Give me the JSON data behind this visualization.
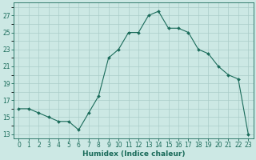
{
  "x": [
    0,
    1,
    2,
    3,
    4,
    5,
    6,
    7,
    8,
    9,
    10,
    11,
    12,
    13,
    14,
    15,
    16,
    17,
    18,
    19,
    20,
    21,
    22,
    23
  ],
  "y": [
    16.0,
    16.0,
    15.5,
    15.0,
    14.5,
    14.5,
    13.5,
    15.5,
    17.5,
    22.0,
    23.0,
    25.0,
    25.0,
    27.0,
    27.5,
    25.5,
    25.5,
    25.0,
    23.0,
    22.5,
    21.0,
    20.0,
    19.5,
    13.0
  ],
  "line_color": "#1a6b5a",
  "marker": "D",
  "marker_size": 2.0,
  "bg_color": "#cce8e4",
  "grid_color": "#aaccc8",
  "xlabel": "Humidex (Indice chaleur)",
  "ylim": [
    12.5,
    28.5
  ],
  "yticks": [
    13,
    15,
    17,
    19,
    21,
    23,
    25,
    27
  ],
  "xlim": [
    -0.5,
    23.5
  ],
  "xticks": [
    0,
    1,
    2,
    3,
    4,
    5,
    6,
    7,
    8,
    9,
    10,
    11,
    12,
    13,
    14,
    15,
    16,
    17,
    18,
    19,
    20,
    21,
    22,
    23
  ],
  "xtick_labels": [
    "0",
    "1",
    "2",
    "3",
    "4",
    "5",
    "6",
    "7",
    "8",
    "9",
    "10",
    "11",
    "12",
    "13",
    "14",
    "15",
    "16",
    "17",
    "18",
    "19",
    "20",
    "21",
    "22",
    "23"
  ],
  "tick_fontsize": 5.5,
  "xlabel_fontsize": 6.5
}
